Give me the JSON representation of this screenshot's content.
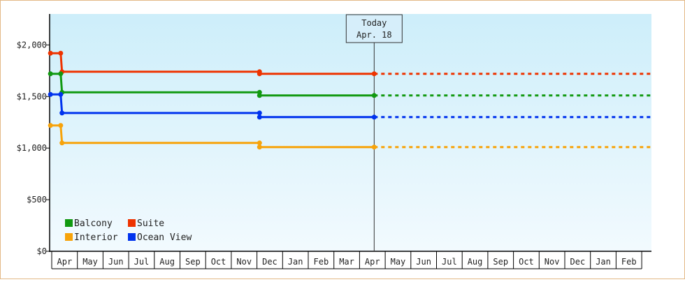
{
  "chart_data": {
    "type": "line",
    "y_unit": "$",
    "ylim": [
      0,
      2300
    ],
    "y_ticks": [
      {
        "value": 0,
        "label": "$0"
      },
      {
        "value": 500,
        "label": "$500"
      },
      {
        "value": 1000,
        "label": "$1,000"
      },
      {
        "value": 1500,
        "label": "$1,500"
      },
      {
        "value": 2000,
        "label": "$2,000"
      }
    ],
    "months": [
      "Apr",
      "May",
      "Jun",
      "Jul",
      "Aug",
      "Sep",
      "Oct",
      "Nov",
      "Dec",
      "Jan",
      "Feb",
      "Mar",
      "Apr",
      "May",
      "Jun",
      "Jul",
      "Aug",
      "Sep",
      "Oct",
      "Nov",
      "Dec",
      "Jan",
      "Feb"
    ],
    "today": {
      "line1": "Today",
      "line2": "Apr. 18",
      "month_index": 12.57
    },
    "series": [
      {
        "name": "Suite",
        "color": "#ee3300",
        "points": [
          [
            -0.05,
            1920
          ],
          [
            0.35,
            1920
          ],
          [
            0.4,
            1740
          ],
          [
            8.1,
            1740
          ],
          [
            8.1,
            1720
          ],
          [
            12.57,
            1720
          ]
        ],
        "projection": [
          [
            12.57,
            1720
          ],
          [
            23.4,
            1720
          ]
        ]
      },
      {
        "name": "Balcony",
        "color": "#119911",
        "points": [
          [
            -0.05,
            1720
          ],
          [
            0.35,
            1720
          ],
          [
            0.4,
            1540
          ],
          [
            8.1,
            1540
          ],
          [
            8.1,
            1510
          ],
          [
            12.57,
            1510
          ]
        ],
        "projection": [
          [
            12.57,
            1510
          ],
          [
            23.4,
            1510
          ]
        ]
      },
      {
        "name": "Ocean View",
        "color": "#0033ee",
        "points": [
          [
            -0.05,
            1520
          ],
          [
            0.35,
            1520
          ],
          [
            0.4,
            1340
          ],
          [
            8.1,
            1340
          ],
          [
            8.1,
            1300
          ],
          [
            12.57,
            1300
          ]
        ],
        "projection": [
          [
            12.57,
            1300
          ],
          [
            23.4,
            1300
          ]
        ]
      },
      {
        "name": "Interior",
        "color": "#f7a30a",
        "points": [
          [
            -0.05,
            1220
          ],
          [
            0.35,
            1220
          ],
          [
            0.4,
            1050
          ],
          [
            8.1,
            1050
          ],
          [
            8.1,
            1010
          ],
          [
            12.57,
            1010
          ]
        ],
        "projection": [
          [
            12.57,
            1010
          ],
          [
            23.4,
            1010
          ]
        ]
      }
    ],
    "legend": {
      "placement": "bottom-left",
      "entries": [
        {
          "name": "Balcony",
          "color": "#119911"
        },
        {
          "name": "Suite",
          "color": "#ee3300"
        },
        {
          "name": "Interior",
          "color": "#f7a30a"
        },
        {
          "name": "Ocean View",
          "color": "#0033ee"
        }
      ]
    },
    "grid": false,
    "background_gradient": [
      "#cdeefa",
      "#f2fafe"
    ]
  }
}
